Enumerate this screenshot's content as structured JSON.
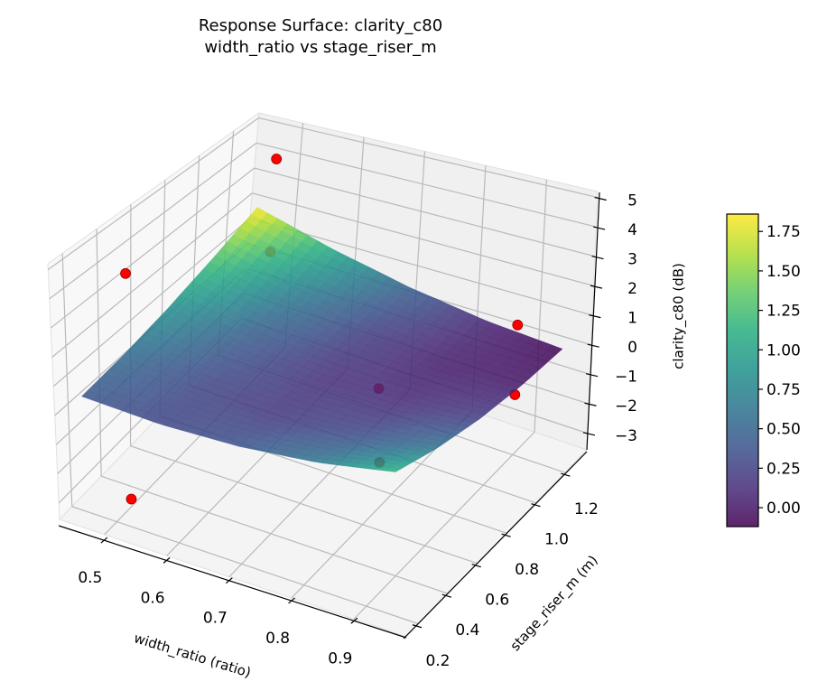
{
  "chart_data": {
    "type": "surface",
    "title": "Response Surface: clarity_c80",
    "subtitle": "width_ratio vs stage_riser_m",
    "xlabel": "width_ratio (ratio)",
    "ylabel": "stage_riser_m (m)",
    "zlabel": "clarity_c80 (dB)",
    "xlim": [
      0.428,
      0.984
    ],
    "ylim": [
      0.115,
      1.35
    ],
    "zlim": [
      -3.56,
      5.2
    ],
    "x_ticks": [
      "0.5",
      "0.6",
      "0.7",
      "0.8",
      "0.9"
    ],
    "y_ticks": [
      "0.2",
      "0.4",
      "0.6",
      "0.8",
      "1.0",
      "1.2"
    ],
    "z_ticks": [
      "−3",
      "−2",
      "−1",
      "0",
      "1",
      "2",
      "3",
      "4",
      "5"
    ],
    "colormap": "viridis",
    "colorbar": {
      "range": [
        -0.12,
        1.86
      ],
      "ticks": [
        "0.00",
        "0.25",
        "0.50",
        "0.75",
        "1.00",
        "1.25",
        "1.50",
        "1.75"
      ]
    },
    "surface": {
      "x": [
        0.45,
        0.575,
        0.7,
        0.825,
        0.95
      ],
      "y": [
        0.2,
        0.475,
        0.75,
        1.025,
        1.3
      ],
      "z": [
        [
          0.4,
          0.29,
          0.38,
          0.66,
          1.15
        ],
        [
          0.56,
          0.28,
          0.19,
          0.31,
          0.63
        ],
        [
          0.85,
          0.4,
          0.15,
          0.1,
          0.25
        ],
        [
          1.28,
          0.66,
          0.24,
          0.03,
          0.01
        ],
        [
          1.85,
          1.06,
          0.48,
          0.09,
          -0.1
        ]
      ]
    },
    "points": {
      "color": "#ff0000",
      "x": [
        0.5,
        0.5,
        0.5,
        0.5,
        0.9,
        0.9,
        0.9,
        0.9
      ],
      "y": [
        1.2,
        1.2,
        0.3,
        0.3,
        1.2,
        1.2,
        0.3,
        0.3
      ],
      "z": [
        4.54,
        0.98,
        4.52,
        -3.3,
        0.91,
        -1.49,
        3.1,
        0.67
      ]
    },
    "grid": true
  }
}
